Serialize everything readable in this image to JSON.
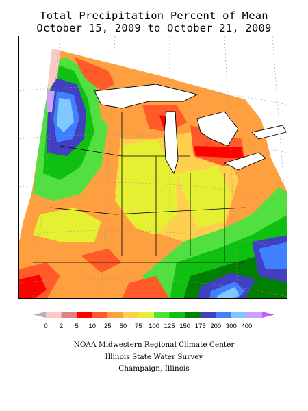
{
  "title": {
    "line1": "Total Precipitation Percent of Mean",
    "line2": "October 15, 2009 to October 21, 2009"
  },
  "legend": {
    "labels": [
      "0",
      "2",
      "5",
      "10",
      "25",
      "50",
      "75",
      "100",
      "125",
      "150",
      "175",
      "200",
      "300",
      "400"
    ],
    "colors": [
      "#ffc8c8",
      "#e08080",
      "#ff0000",
      "#ff5a28",
      "#ffa040",
      "#ffd050",
      "#e6f032",
      "#50e040",
      "#10c010",
      "#008000",
      "#4040c0",
      "#4080ff",
      "#80c8ff",
      "#d0a0ff"
    ],
    "low_arrow_color": "#b4b4b4",
    "high_arrow_color": "#c060ff"
  },
  "map_colors": {
    "red": "#ff0000",
    "orange_red": "#ff5a28",
    "orange": "#ffa040",
    "yellow_orange": "#ffd050",
    "yellow_green": "#e6f032",
    "light_green": "#50e040",
    "green": "#10c010",
    "dark_green": "#008000",
    "blue": "#4040c0",
    "mid_blue": "#4080ff",
    "light_blue": "#80c8ff",
    "pink": "#ffc8c8",
    "purple": "#d0a0ff"
  },
  "credits": {
    "line1": "NOAA Midwestern Regional Climate Center",
    "line2": "Illinois State Water Survey",
    "line3": "Champaign, Illinois"
  }
}
